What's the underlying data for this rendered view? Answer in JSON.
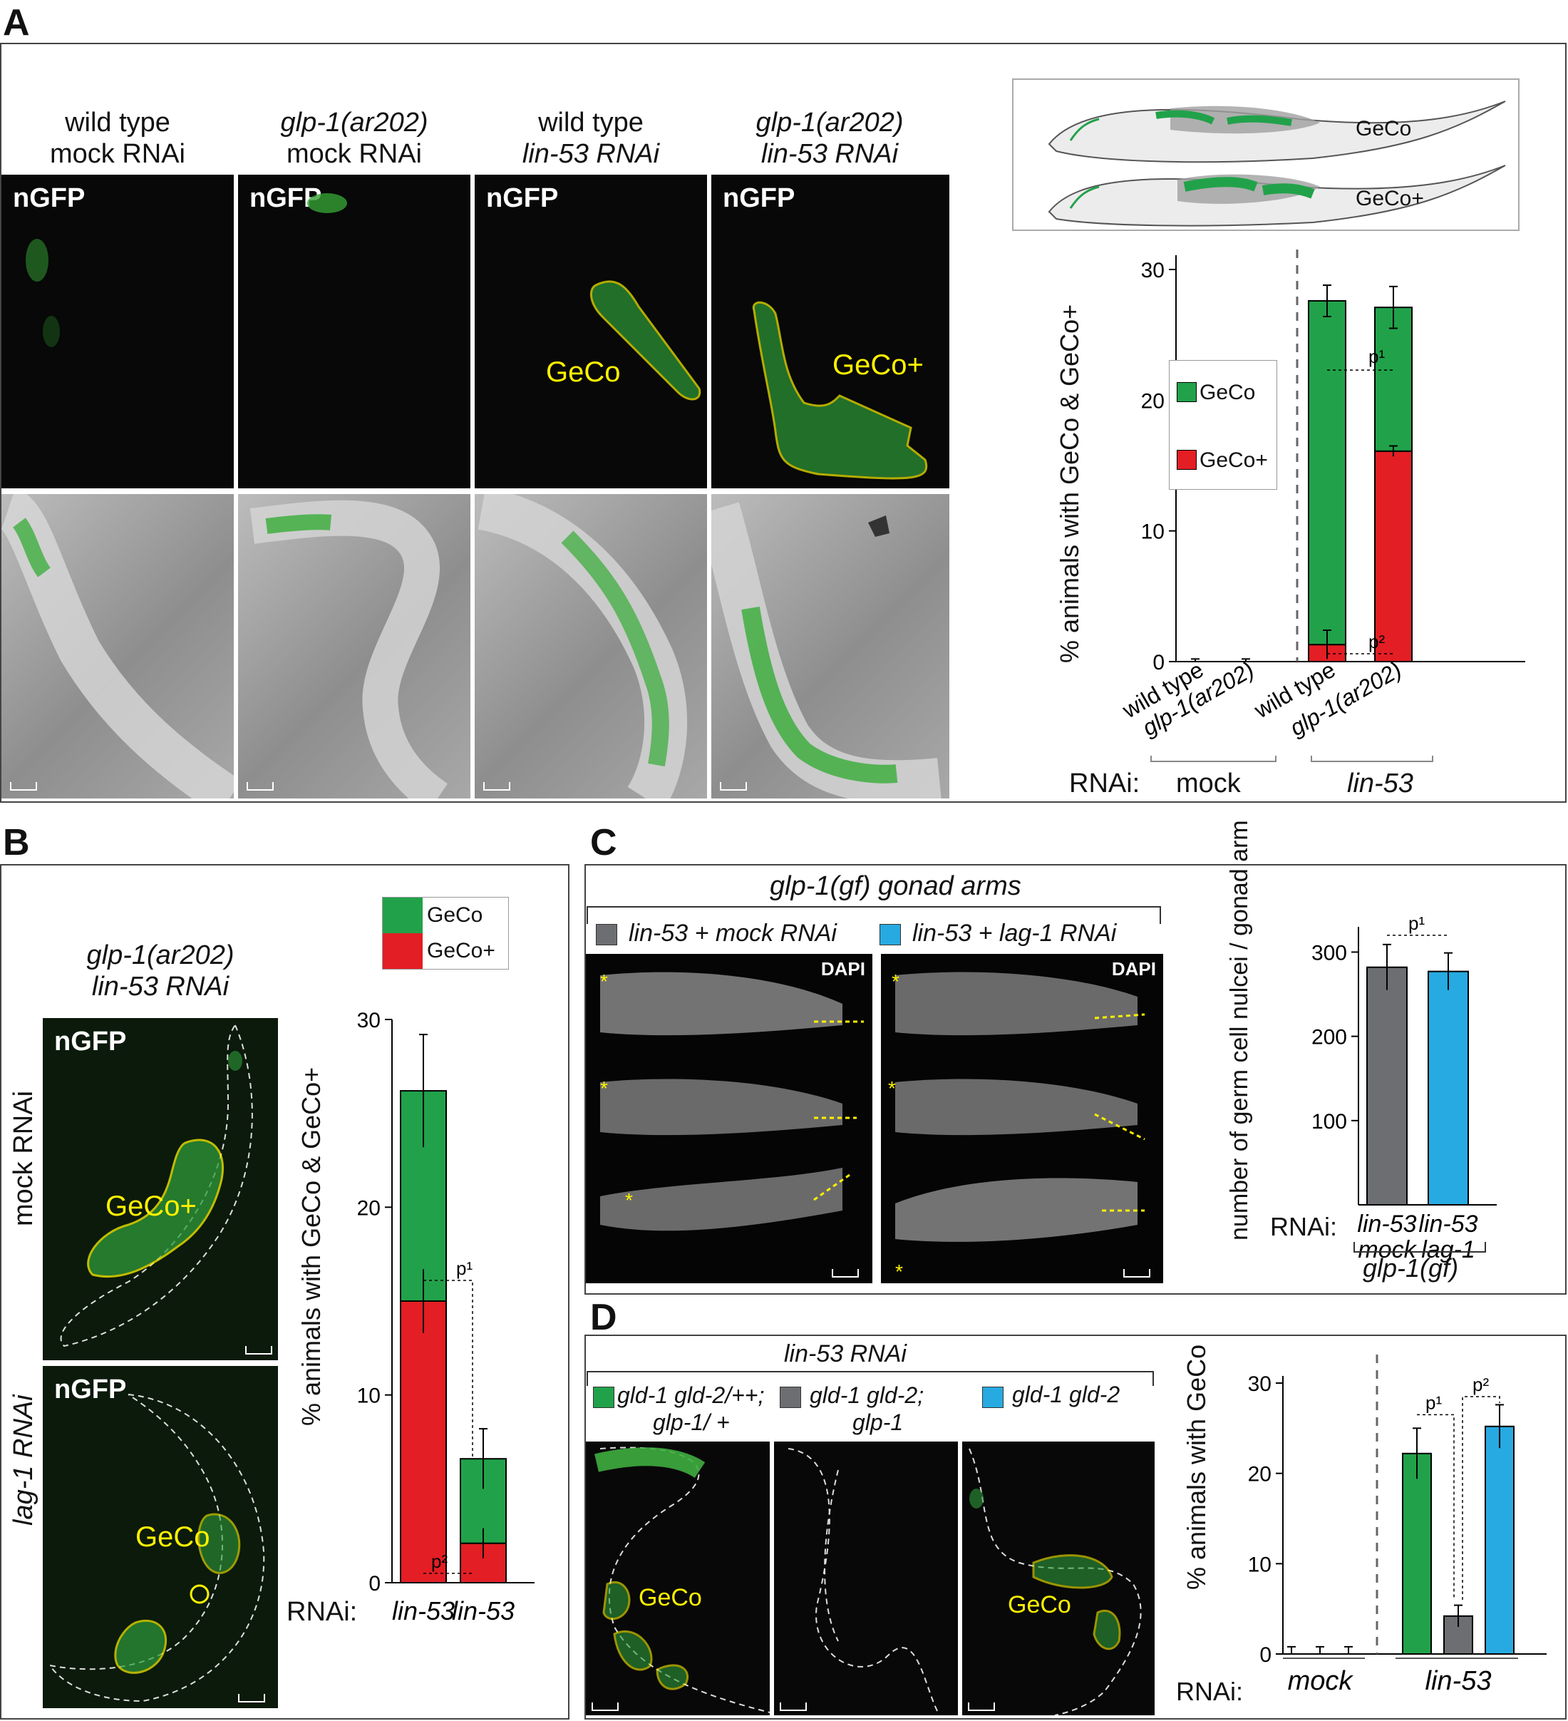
{
  "panels": {
    "A": {
      "letter": "A",
      "columns": [
        {
          "line1": "wild type",
          "line2": "mock RNAi"
        },
        {
          "line1": "glp-1(ar202)",
          "line2": "mock RNAi"
        },
        {
          "line1": "wild type",
          "line2": "lin-53 RNAi"
        },
        {
          "line1": "glp-1(ar202)",
          "line2": "lin-53 RNAi"
        }
      ],
      "channel_label": "nGFP",
      "overlay_labels": {
        "geco": "GeCo",
        "geco_plus": "GeCo+"
      },
      "schematic_labels": {
        "top": "GeCo",
        "bottom": "GeCo+"
      },
      "legend": {
        "geco": "GeCo",
        "geco_plus": "GeCo+"
      },
      "rnai_label": "RNAi:",
      "group_labels": {
        "mock": "mock",
        "lin53": "lin-53"
      },
      "p1": "p¹",
      "p2": "p²"
    },
    "B": {
      "letter": "B",
      "title_line1": "glp-1(ar202)",
      "title_line2": "lin-53 RNAi",
      "row_labels": {
        "top": "mock RNAi",
        "bottom": "lag-1 RNAi"
      },
      "channel_label": "nGFP",
      "overlay_labels": {
        "geco_plus": "GeCo+",
        "geco": "GeCo"
      },
      "legend": {
        "geco": "GeCo",
        "geco_plus": "GeCo+"
      },
      "rnai_label": "RNAi:",
      "p1": "p¹",
      "p2": "p²"
    },
    "C": {
      "letter": "C",
      "title": "glp-1(gf) gonad arms",
      "legend": {
        "left": "lin-53 + mock RNAi",
        "right": "lin-53 + lag-1 RNAi"
      },
      "image_label": "DAPI",
      "rnai_label": "RNAi:",
      "genotype": "glp-1(gf)",
      "p1": "p¹"
    },
    "D": {
      "letter": "D",
      "title": "lin-53 RNAi",
      "legend": [
        {
          "line1": "gld-1 gld-2/++;",
          "line2": "glp-1/ +"
        },
        {
          "line1": "gld-1 gld-2;",
          "line2": "glp-1"
        },
        {
          "line1": "gld-1 gld-2",
          "line2": ""
        }
      ],
      "overlay_label": "GeCo",
      "rnai_label": "RNAi:",
      "group_labels": {
        "mock": "mock",
        "lin53": "lin-53"
      },
      "p1": "p¹",
      "p2": "p²"
    }
  },
  "colors": {
    "green": "#21a24a",
    "red": "#e31e24",
    "grey": "#6d6e71",
    "blue": "#27aae1",
    "yellow": "#fff200"
  },
  "chart_data": [
    {
      "id": "A",
      "type": "bar",
      "stacked": true,
      "categories": [
        "wild type",
        "glp-1(ar202)",
        "wild type",
        "glp-1(ar202)"
      ],
      "groups": [
        "mock",
        "mock",
        "lin-53",
        "lin-53"
      ],
      "series": [
        {
          "name": "GeCo+",
          "values": [
            0,
            0,
            1.3,
            16.1
          ]
        },
        {
          "name": "GeCo",
          "values": [
            0,
            0,
            26.3,
            11.0
          ]
        }
      ],
      "error_bar_totals": [
        0.2,
        0.2,
        1.2,
        1.6
      ],
      "ylabel": "% animals with GeCo & GeCo+",
      "ylim": [
        0,
        30
      ],
      "yticks": [
        0,
        10,
        20,
        30
      ]
    },
    {
      "id": "B",
      "type": "bar",
      "stacked": true,
      "categories": [
        "lin-53 mock",
        "lin-53 lag-1"
      ],
      "series": [
        {
          "name": "GeCo+",
          "values": [
            15.0,
            2.1
          ]
        },
        {
          "name": "GeCo",
          "values": [
            11.2,
            4.5
          ]
        }
      ],
      "error_bar_totals": [
        3.0,
        1.6
      ],
      "ylabel": "% animals with GeCo & GeCo+",
      "ylim": [
        0,
        30
      ],
      "yticks": [
        0,
        10,
        20,
        30
      ]
    },
    {
      "id": "C",
      "type": "bar",
      "categories": [
        "lin-53 mock",
        "lin-53 lag-1"
      ],
      "values": [
        282,
        277
      ],
      "errors": [
        27,
        22
      ],
      "ylabel": "number of germ cell nulcei / gonad arm",
      "ylim": [
        0,
        330
      ],
      "yticks": [
        100,
        200,
        300
      ]
    },
    {
      "id": "D",
      "type": "bar",
      "categories": [
        "gld-1 gld-2/++; glp-1/ +",
        "gld-1 gld-2; glp-1",
        "gld-1 gld-2"
      ],
      "groups": [
        "mock",
        "lin-53"
      ],
      "series": [
        {
          "name": "mock",
          "values": [
            0,
            0,
            0
          ],
          "errors": [
            0.8,
            0.8,
            0.8
          ]
        },
        {
          "name": "lin-53",
          "values": [
            22.2,
            4.2,
            25.2
          ],
          "errors": [
            2.8,
            1.2,
            2.4
          ]
        }
      ],
      "ylabel": "% animals with GeCo",
      "ylim": [
        0,
        30
      ],
      "yticks": [
        0,
        10,
        20,
        30
      ]
    }
  ]
}
